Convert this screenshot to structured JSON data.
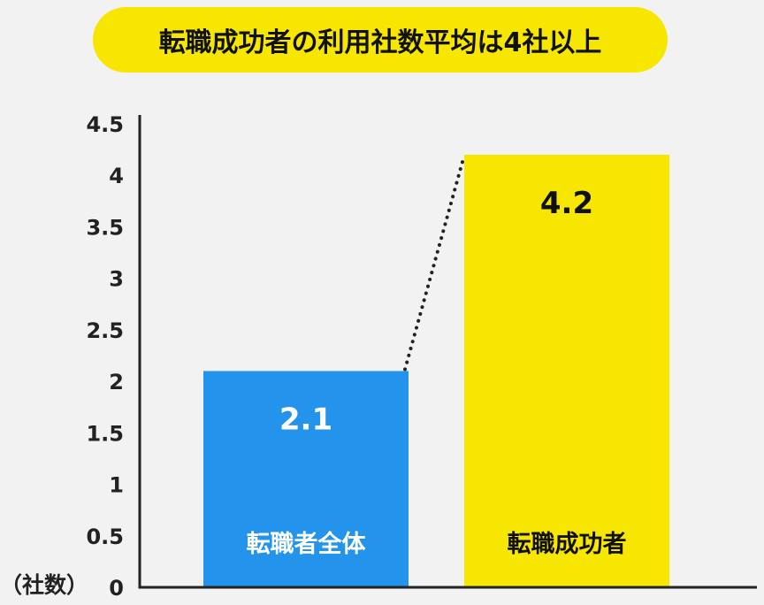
{
  "title": "転職成功者の利用社数平均は4社以上",
  "colors": {
    "background": "#f2f2f2",
    "title_pill": "#f7e600",
    "bar_all": "#2393eb",
    "bar_success": "#f7e600",
    "axis": "#222222",
    "text_dark": "#111111",
    "text_light": "#ffffff"
  },
  "chart_data": {
    "type": "bar",
    "title": "転職成功者の利用社数平均は4社以上",
    "ylabel": "（社数）",
    "ylim": [
      0,
      4.5
    ],
    "yticks": [
      "0",
      "0.5",
      "1",
      "1.5",
      "2",
      "2.5",
      "3",
      "3.5",
      "4",
      "4.5"
    ],
    "categories": [
      "転職者全体",
      "転職成功者"
    ],
    "values": [
      2.1,
      4.2
    ],
    "value_labels": [
      "2.1",
      "4.2"
    ],
    "grid": false,
    "connector": "dotted line from top of first bar to top of second bar"
  }
}
